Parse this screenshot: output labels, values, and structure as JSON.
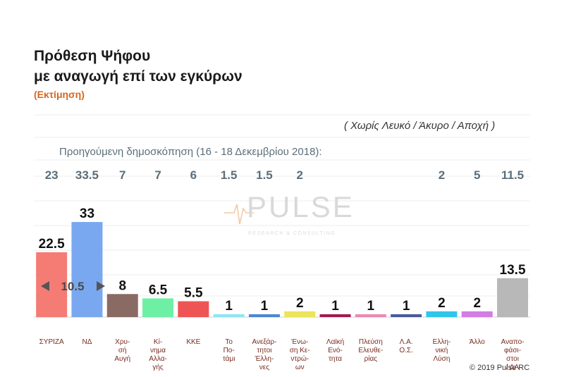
{
  "title_line1": "Πρόθεση Ψήφου",
  "title_line2": "με αναγωγή επί των εγκύρων",
  "subtitle": "(Εκτίμηση)",
  "note": "( Χωρίς Λευκό / Άκυρο / Αποχή )",
  "previous_label": "Προηγούμενη δημοσκόπηση (16 - 18 Δεκεμβρίου 2018):",
  "copyright": "© 2019 Pulse RC",
  "watermark": {
    "name": "PULSE",
    "tagline": "RESEARCH & CONSULTING"
  },
  "chart_data": {
    "type": "bar",
    "categories": [
      "ΣΥΡΙΖΑ",
      "ΝΔ",
      "Χρυ-|σή|Αυγή",
      "Κί-|νημα|Αλλα-|γής",
      "ΚΚΕ",
      "Το|Πο-|τάμι",
      "Ανεξάρ-|τητοι|Έλλη-|νες",
      "Ένω-|ση Κε-|ντρώ-|ων",
      "Λαϊκή|Ενό-|τητα",
      "Πλεύση|Ελευθε-|ρίας",
      "Λ.Α.|Ο.Σ.",
      "Ελλη-|νική|Λύση",
      "Άλλο",
      "Αναπο-|φάσι-|στοι|/ ΔΑ"
    ],
    "values": [
      22.5,
      33,
      8,
      6.5,
      5.5,
      1,
      1,
      2,
      1,
      1,
      1,
      2,
      2,
      13.5
    ],
    "value_labels": [
      "22.5",
      "33",
      "8",
      "6.5",
      "5.5",
      "1",
      "1",
      "2",
      "1",
      "1",
      "1",
      "2",
      "2",
      "13.5"
    ],
    "previous": [
      "23",
      "33.5",
      "7",
      "7",
      "6",
      "1.5",
      "1.5",
      "2",
      "",
      "",
      "",
      "2",
      "5",
      "11.5"
    ],
    "colors": [
      "#f47c74",
      "#7aa8f0",
      "#8a6b63",
      "#6ef0a4",
      "#ef5454",
      "#8ee6f0",
      "#4f86d4",
      "#ece45a",
      "#a31a4e",
      "#ec8ab4",
      "#4a5a9a",
      "#2ec6ea",
      "#d47ce4",
      "#b8b8b8"
    ],
    "difference_label": "10.5",
    "ylim": [
      0,
      36
    ]
  }
}
